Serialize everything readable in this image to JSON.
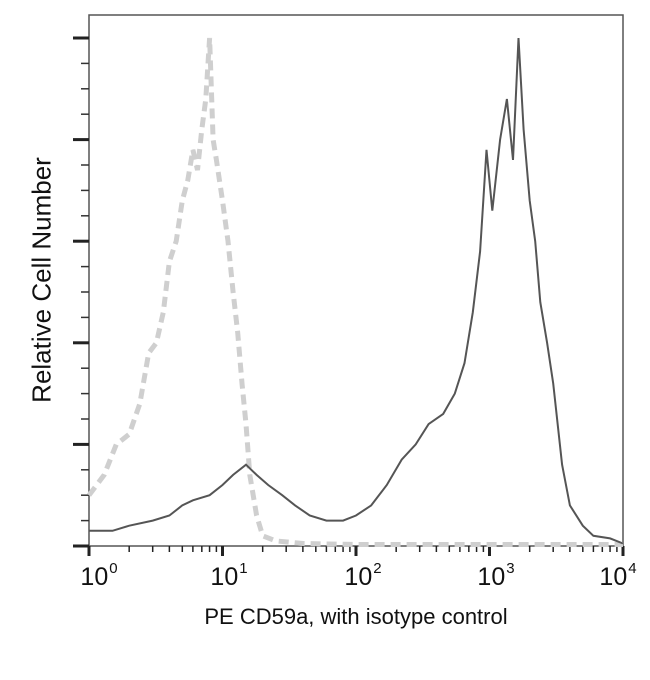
{
  "chart_data": {
    "type": "line",
    "title": "",
    "xlabel": "PE CD59a, with isotype control",
    "ylabel": "Relative Cell Number",
    "xscale": "log",
    "xlim": [
      1,
      10000
    ],
    "ylim": [
      0,
      100
    ],
    "x_tick_labels": [
      {
        "base": "10",
        "exp": "0"
      },
      {
        "base": "10",
        "exp": "1"
      },
      {
        "base": "10",
        "exp": "2"
      },
      {
        "base": "10",
        "exp": "3"
      },
      {
        "base": "10",
        "exp": "4"
      }
    ],
    "y_tick_labels": [],
    "y_major_ticks": 6,
    "grid": false,
    "legend": null,
    "series": [
      {
        "name": "Isotype control",
        "style": "dashed",
        "color": "#cfcfcf",
        "x": [
          1.0,
          1.3,
          1.6,
          2.0,
          2.4,
          2.8,
          3.2,
          3.6,
          4.0,
          4.5,
          5.0,
          5.5,
          6.0,
          6.5,
          7.0,
          7.5,
          8.0,
          8.5,
          9.0,
          10,
          11,
          12,
          13,
          14,
          15,
          16,
          18,
          20,
          25,
          40,
          100,
          1000,
          10000
        ],
        "y": [
          10,
          14,
          20,
          22,
          28,
          38,
          40,
          46,
          56,
          60,
          68,
          72,
          78,
          74,
          82,
          88,
          100,
          80,
          76,
          68,
          60,
          50,
          42,
          32,
          24,
          14,
          6,
          2,
          1,
          0.5,
          0.3,
          0.3,
          0.3
        ]
      },
      {
        "name": "PE CD59a",
        "style": "solid",
        "color": "#555555",
        "x": [
          1.0,
          1.5,
          2.0,
          3.0,
          4.0,
          5.0,
          6.0,
          8.0,
          10,
          12,
          15,
          18,
          22,
          28,
          35,
          45,
          60,
          80,
          100,
          130,
          170,
          220,
          280,
          350,
          450,
          550,
          650,
          750,
          850,
          950,
          1050,
          1200,
          1350,
          1500,
          1650,
          1800,
          2000,
          2200,
          2400,
          2700,
          3000,
          3500,
          4000,
          5000,
          6000,
          8000,
          10000
        ],
        "y": [
          3,
          3,
          4,
          5,
          6,
          8,
          9,
          10,
          12,
          14,
          16,
          14,
          12,
          10,
          8,
          6,
          5,
          5,
          6,
          8,
          12,
          17,
          20,
          24,
          26,
          30,
          36,
          46,
          58,
          78,
          66,
          80,
          88,
          76,
          100,
          82,
          68,
          60,
          48,
          40,
          32,
          16,
          8,
          4,
          2,
          1.5,
          0.5
        ]
      }
    ]
  }
}
